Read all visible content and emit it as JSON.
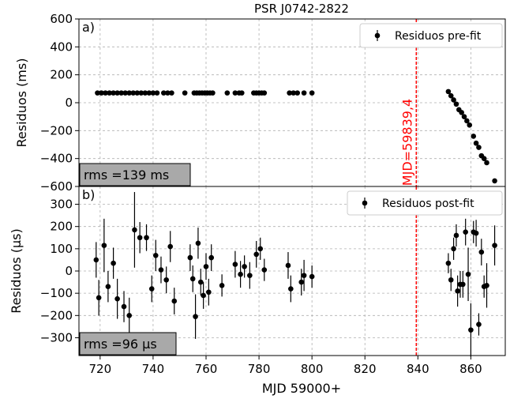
{
  "chart_data": {
    "title": "PSR J0742-2822",
    "xlabel": "MJD 59000+",
    "xlim": [
      712,
      873
    ],
    "xticks": [
      720,
      740,
      760,
      780,
      800,
      820,
      840,
      860
    ],
    "vline": {
      "x": 839.4,
      "label": "MJD=59839,4",
      "color": "#ff0000"
    },
    "panels": [
      {
        "tag": "a)",
        "type": "scatter",
        "ylabel": "Residuos (ms)",
        "ylim": [
          -600,
          600
        ],
        "yticks": [
          600,
          400,
          200,
          0,
          -200,
          -400,
          -600
        ],
        "grid": true,
        "legend": {
          "label": "Residuos pre-fit",
          "position": "top-right"
        },
        "rms_label": "rms =139 ms",
        "series": [
          {
            "name": "Residuos pre-fit",
            "x": [
              719,
              720.5,
              722,
              723.5,
              725,
              726.5,
              728,
              729.5,
              731,
              732.5,
              734,
              735.5,
              737,
              738.5,
              740,
              741.5,
              744,
              745.5,
              747,
              752,
              755.5,
              756.5,
              757.5,
              758.5,
              759.5,
              760.5,
              761.5,
              762.5,
              768,
              771,
              772.5,
              773.5,
              778,
              779,
              780,
              781,
              782,
              791.5,
              793,
              794.5,
              797,
              800
            ],
            "y": [
              70,
              70,
              70,
              70,
              70,
              70,
              70,
              70,
              70,
              70,
              70,
              70,
              70,
              70,
              70,
              70,
              70,
              70,
              70,
              70,
              70,
              70,
              70,
              70,
              70,
              70,
              70,
              70,
              70,
              70,
              70,
              70,
              70,
              70,
              70,
              70,
              70,
              70,
              70,
              70,
              70,
              70
            ]
          },
          {
            "name": "",
            "x": [
              851.5,
              852.5,
              853.5,
              854.5,
              855.5,
              856.5,
              857.5,
              858.5,
              859.5,
              861,
              862,
              863,
              864,
              865,
              866,
              869
            ],
            "y": [
              80,
              50,
              20,
              -10,
              -50,
              -70,
              -100,
              -130,
              -160,
              -240,
              -290,
              -320,
              -380,
              -400,
              -430,
              -560
            ]
          }
        ]
      },
      {
        "tag": "b)",
        "type": "scatter",
        "ylabel": "Residuos (μs)",
        "ylim": [
          -380,
          380
        ],
        "yticks": [
          300,
          200,
          100,
          0,
          -100,
          -200,
          -300
        ],
        "grid": true,
        "legend": {
          "label": "Residuos post-fit",
          "position": "top-right"
        },
        "rms_label": "rms =96 μs",
        "series": [
          {
            "name": "Residuos post-fit",
            "x": [
              718.5,
              719.5,
              721.5,
              723,
              725,
              726.5,
              729,
              731,
              733,
              735,
              737.5,
              739.5,
              741,
              743,
              745,
              746.5,
              748,
              754,
              755,
              756,
              757,
              758,
              759,
              760,
              761,
              762,
              766,
              771,
              773,
              774.5,
              776.5,
              779,
              780.5,
              782,
              791,
              792,
              796,
              797,
              800
            ],
            "y": [
              50,
              -120,
              115,
              -70,
              35,
              -125,
              -160,
              -200,
              185,
              150,
              150,
              -80,
              70,
              5,
              -40,
              110,
              -135,
              60,
              -35,
              -205,
              125,
              -50,
              -110,
              20,
              -95,
              60,
              -65,
              30,
              -15,
              20,
              -20,
              75,
              100,
              5,
              25,
              -80,
              -50,
              -20,
              -25
            ],
            "err": [
              80,
              80,
              120,
              70,
              70,
              90,
              70,
              80,
              170,
              70,
              60,
              60,
              70,
              60,
              60,
              70,
              60,
              60,
              60,
              100,
              70,
              60,
              60,
              60,
              60,
              60,
              50,
              60,
              60,
              50,
              60,
              60,
              50,
              50,
              60,
              60,
              60,
              70,
              50
            ]
          },
          {
            "name": "",
            "x": [
              851.5,
              852.5,
              853.5,
              854.5,
              855,
              856,
              857,
              858,
              859,
              860,
              861,
              862,
              863,
              864,
              865,
              866,
              869
            ],
            "y": [
              35,
              -40,
              100,
              160,
              -90,
              -60,
              -60,
              175,
              -15,
              -265,
              175,
              170,
              -240,
              85,
              -70,
              -65,
              115
            ],
            "err": [
              45,
              50,
              50,
              50,
              70,
              60,
              60,
              60,
              120,
              120,
              50,
              60,
              50,
              60,
              50,
              100,
              90
            ]
          }
        ]
      }
    ]
  }
}
